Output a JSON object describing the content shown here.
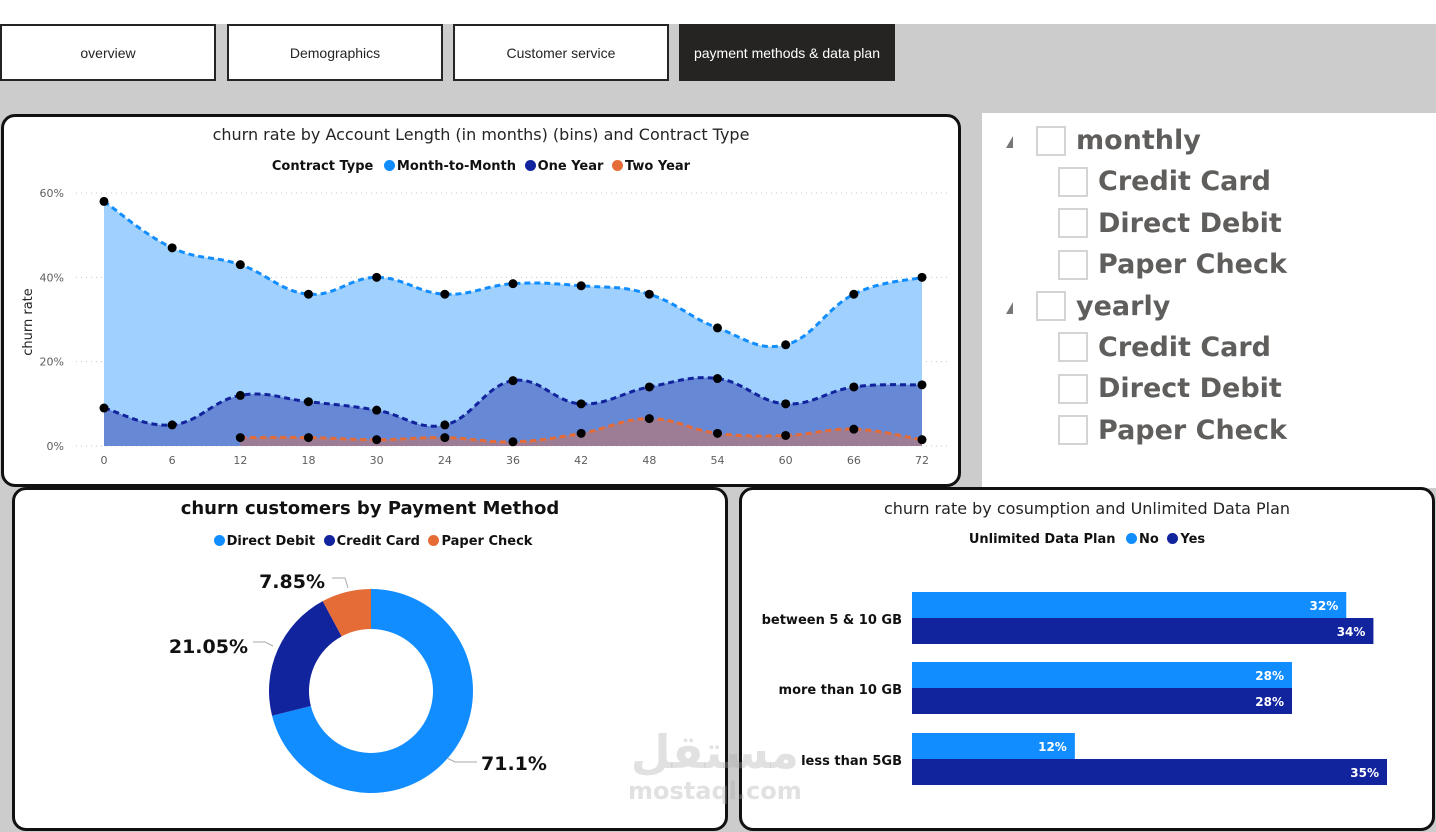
{
  "nav": {
    "tabs": [
      {
        "label": "overview",
        "active": false
      },
      {
        "label": "Demographics",
        "active": false
      },
      {
        "label": "Customer service",
        "active": false
      },
      {
        "label": "payment methods & data plan",
        "active": true
      }
    ]
  },
  "colors": {
    "month_to_month": "#118dff",
    "one_year": "#12239e",
    "two_year": "#e66c37",
    "nav_active_bg": "#252423",
    "canvas_bg": "#cccccc"
  },
  "area_chart": {
    "title": "churn rate by Account Length (in months) (bins) and Contract Type",
    "legend_title": "Contract Type",
    "legend": [
      "Month-to-Month",
      "One Year",
      "Two Year"
    ],
    "ylabel": "churn rate",
    "y_ticks": [
      "60%",
      "40%",
      "20%",
      "0%"
    ],
    "x_ticks": [
      "0",
      "6",
      "12",
      "18",
      "30",
      "24",
      "36",
      "42",
      "48",
      "54",
      "60",
      "66",
      "72"
    ]
  },
  "slicer": {
    "groups": [
      {
        "label": "monthly",
        "items": [
          "Credit Card",
          "Direct Debit",
          "Paper Check"
        ]
      },
      {
        "label": "yearly",
        "items": [
          "Credit Card",
          "Direct Debit",
          "Paper Check"
        ]
      }
    ]
  },
  "donut_chart": {
    "title": "churn customers by Payment Method",
    "legend": [
      "Direct Debit",
      "Credit Card",
      "Paper Check"
    ],
    "labels": [
      "71.1%",
      "21.05%",
      "7.85%"
    ]
  },
  "bar_chart": {
    "title": "churn rate by cosumption and Unlimited Data Plan",
    "legend_title": "Unlimited Data Plan",
    "legend": [
      "No",
      "Yes"
    ],
    "categories": [
      "between 5 & 10 GB",
      "more than 10 GB",
      "less than 5GB"
    ],
    "labels_no": [
      "32%",
      "28%",
      "12%"
    ],
    "labels_yes": [
      "34%",
      "28%",
      "35%"
    ]
  },
  "watermark": {
    "arabic": "مستقل",
    "latin": "mostaql.com"
  },
  "chart_data": [
    {
      "type": "area",
      "title": "churn rate by Account Length (in months) (bins) and Contract Type",
      "xlabel": "",
      "ylabel": "churn rate",
      "x": [
        "0",
        "6",
        "12",
        "18",
        "30",
        "24",
        "36",
        "42",
        "48",
        "54",
        "60",
        "66",
        "72"
      ],
      "ylim": [
        0,
        60
      ],
      "y_unit": "%",
      "grid": true,
      "legend_position": "top-center",
      "series": [
        {
          "name": "Month-to-Month",
          "values": [
            58,
            47,
            43,
            36,
            40,
            36,
            38.5,
            38,
            36,
            28,
            24,
            36,
            40
          ]
        },
        {
          "name": "One Year",
          "values": [
            9,
            5,
            12,
            10.5,
            8.5,
            5,
            15.5,
            10,
            14,
            16,
            10,
            14,
            14.5
          ]
        },
        {
          "name": "Two Year",
          "values": [
            null,
            null,
            2,
            2,
            1.5,
            2,
            1,
            3,
            6.5,
            3,
            2.5,
            4,
            1.5
          ]
        }
      ]
    },
    {
      "type": "pie",
      "title": "churn customers by Payment Method",
      "donut": true,
      "legend_position": "top-center",
      "categories": [
        "Direct Debit",
        "Credit Card",
        "Paper Check"
      ],
      "values": [
        71.1,
        21.05,
        7.85
      ]
    },
    {
      "type": "bar",
      "orientation": "horizontal",
      "title": "churn rate by cosumption and Unlimited Data Plan",
      "legend_position": "top-center",
      "categories": [
        "between 5 & 10 GB",
        "more than 10 GB",
        "less than 5GB"
      ],
      "series": [
        {
          "name": "No",
          "values": [
            32,
            28,
            12
          ]
        },
        {
          "name": "Yes",
          "values": [
            34,
            28,
            35
          ]
        }
      ],
      "xlim": [
        0,
        35
      ],
      "y_unit": "%"
    }
  ]
}
